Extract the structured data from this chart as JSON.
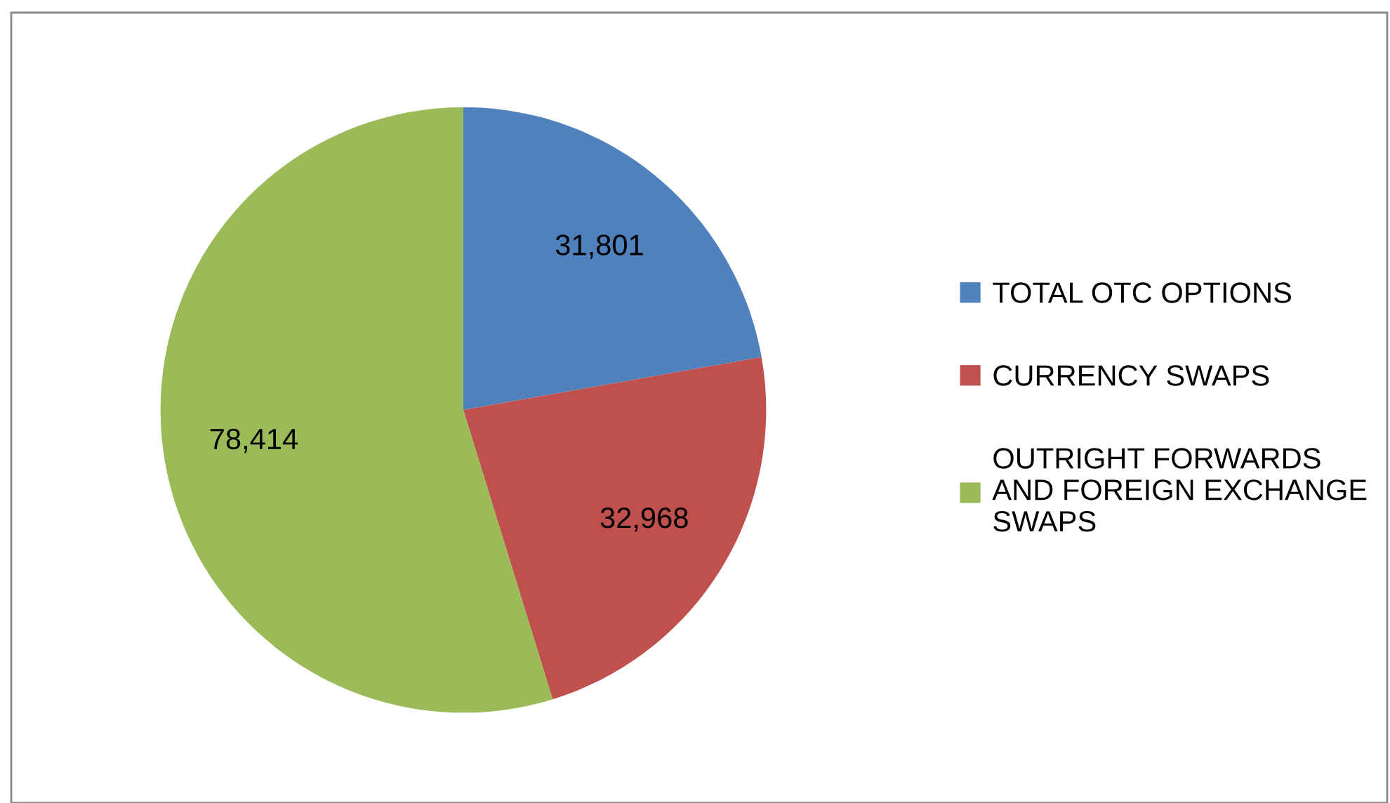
{
  "chart_data": {
    "type": "pie",
    "categories": [
      "TOTAL OTC OPTIONS",
      "CURRENCY SWAPS",
      "OUTRIGHT FORWARDS\nAND FOREIGN EXCHANGE\nSWAPS"
    ],
    "values": [
      31801,
      32968,
      78414
    ],
    "colors": [
      "#4f81bd",
      "#c0504d",
      "#9bbb59"
    ],
    "value_labels": [
      "31,801",
      "32,968",
      "78,414"
    ],
    "legend": "right"
  }
}
